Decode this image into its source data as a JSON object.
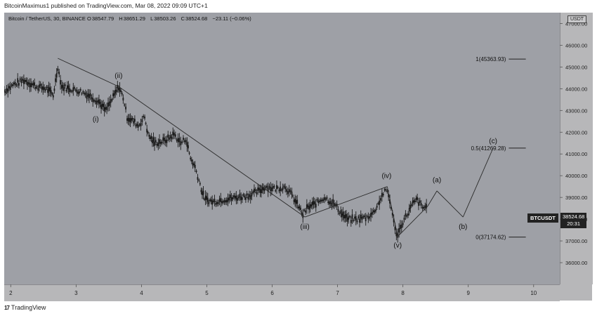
{
  "caption": "BitcoinMaximus1 published on TradingView.com, Mar 08, 2022 09:09 UTC+1",
  "header": {
    "symbol": "Bitcoin / TetherUS, 30, BINANCE",
    "o_label": "O",
    "o": "38547.79",
    "h_label": "H",
    "h": "38651.29",
    "l_label": "L",
    "l": "38503.26",
    "c_label": "C",
    "c": "38524.68",
    "change": "−23.11 (−0.06%)"
  },
  "currency": "USDT",
  "price_tag": {
    "symbol": "BTCUSDT",
    "price": "38524.68",
    "countdown": "20:31"
  },
  "footer": {
    "logo": "17",
    "brand": "TradingView"
  },
  "colors": {
    "background": "#9ea0a6",
    "axis_bg": "#b7b7b9",
    "line": "#2a2a2a",
    "candle": "#1a1a1a"
  },
  "chart_data": {
    "type": "line",
    "title": "",
    "ylim": [
      35000,
      47500
    ],
    "xlim": [
      1.9,
      10.4
    ],
    "grid": false,
    "y_ticks": [
      {
        "value": 36000,
        "label": "36000.00"
      },
      {
        "value": 37000,
        "label": "37000.00"
      },
      {
        "value": 38000,
        "label": "38000.00"
      },
      {
        "value": 39000,
        "label": "39000.00"
      },
      {
        "value": 40000,
        "label": "40000.00"
      },
      {
        "value": 41000,
        "label": "41000.00"
      },
      {
        "value": 42000,
        "label": "42000.00"
      },
      {
        "value": 43000,
        "label": "43000.00"
      },
      {
        "value": 44000,
        "label": "44000.00"
      },
      {
        "value": 45000,
        "label": "45000.00"
      },
      {
        "value": 46000,
        "label": "46000.00"
      },
      {
        "value": 47000,
        "label": "47000.00"
      }
    ],
    "x_ticks": [
      {
        "value": 2,
        "label": "2"
      },
      {
        "value": 3,
        "label": "3"
      },
      {
        "value": 4,
        "label": "4"
      },
      {
        "value": 5,
        "label": "5"
      },
      {
        "value": 6,
        "label": "6"
      },
      {
        "value": 7,
        "label": "7"
      },
      {
        "value": 8,
        "label": "8"
      },
      {
        "value": 9,
        "label": "9"
      },
      {
        "value": 10,
        "label": "10"
      }
    ],
    "price_path": [
      [
        1.9,
        43900
      ],
      [
        2.05,
        44200
      ],
      [
        2.2,
        44400
      ],
      [
        2.4,
        44100
      ],
      [
        2.55,
        44000
      ],
      [
        2.65,
        43700
      ],
      [
        2.72,
        45000
      ],
      [
        2.78,
        44100
      ],
      [
        2.9,
        44000
      ],
      [
        3.05,
        43900
      ],
      [
        3.2,
        43700
      ],
      [
        3.35,
        43400
      ],
      [
        3.45,
        43000
      ],
      [
        3.55,
        43500
      ],
      [
        3.65,
        44100
      ],
      [
        3.72,
        43600
      ],
      [
        3.78,
        42700
      ],
      [
        3.88,
        42500
      ],
      [
        3.95,
        42300
      ],
      [
        4.05,
        42700
      ],
      [
        4.1,
        41900
      ],
      [
        4.2,
        41500
      ],
      [
        4.35,
        41600
      ],
      [
        4.5,
        41900
      ],
      [
        4.6,
        41500
      ],
      [
        4.68,
        41700
      ],
      [
        4.75,
        40800
      ],
      [
        4.82,
        40400
      ],
      [
        4.88,
        39800
      ],
      [
        4.93,
        39200
      ],
      [
        4.98,
        38900
      ],
      [
        5.1,
        38800
      ],
      [
        5.25,
        38900
      ],
      [
        5.45,
        39000
      ],
      [
        5.65,
        39100
      ],
      [
        5.8,
        39300
      ],
      [
        5.9,
        39500
      ],
      [
        6.05,
        39400
      ],
      [
        6.2,
        39500
      ],
      [
        6.3,
        39100
      ],
      [
        6.4,
        38600
      ],
      [
        6.47,
        38200
      ],
      [
        6.53,
        38500
      ],
      [
        6.65,
        38700
      ],
      [
        6.8,
        39000
      ],
      [
        6.95,
        38700
      ],
      [
        7.05,
        38300
      ],
      [
        7.15,
        38000
      ],
      [
        7.3,
        38000
      ],
      [
        7.45,
        38100
      ],
      [
        7.55,
        38300
      ],
      [
        7.62,
        38700
      ],
      [
        7.7,
        39200
      ],
      [
        7.76,
        39300
      ],
      [
        7.82,
        38600
      ],
      [
        7.88,
        37500
      ],
      [
        7.92,
        37300
      ],
      [
        8.0,
        37900
      ],
      [
        8.08,
        38300
      ],
      [
        8.15,
        38700
      ],
      [
        8.22,
        38900
      ],
      [
        8.3,
        38500
      ],
      [
        8.38,
        38650
      ]
    ],
    "wave_path": [
      [
        2.72,
        45400
      ],
      [
        3.65,
        44100
      ],
      [
        6.5,
        38100
      ],
      [
        7.76,
        39500
      ],
      [
        7.92,
        37200
      ],
      [
        8.38,
        38600
      ]
    ],
    "projection_path": [
      [
        8.38,
        38600
      ],
      [
        8.52,
        39300
      ],
      [
        8.92,
        38100
      ],
      [
        9.38,
        41270
      ]
    ],
    "fib_levels": [
      {
        "label": "1(45363.93)",
        "value": 45363.93,
        "x_from": 9.62,
        "x_to": 9.88
      },
      {
        "label": "0.5(41269.28)",
        "value": 41269.28,
        "x_from": 9.62,
        "x_to": 9.88
      },
      {
        "label": "0(37174.62)",
        "value": 37174.62,
        "x_from": 9.62,
        "x_to": 9.88
      }
    ],
    "annotations": [
      {
        "text": "(i)",
        "x": 3.3,
        "y": 42500
      },
      {
        "text": "(ii)",
        "x": 3.65,
        "y": 44500
      },
      {
        "text": "(iii)",
        "x": 6.5,
        "y": 37550
      },
      {
        "text": "(iv)",
        "x": 7.75,
        "y": 39900
      },
      {
        "text": "(v)",
        "x": 7.92,
        "y": 36700
      },
      {
        "text": "(a)",
        "x": 8.52,
        "y": 39700
      },
      {
        "text": "(b)",
        "x": 8.92,
        "y": 37550
      },
      {
        "text": "(c)",
        "x": 9.38,
        "y": 41500
      }
    ]
  }
}
